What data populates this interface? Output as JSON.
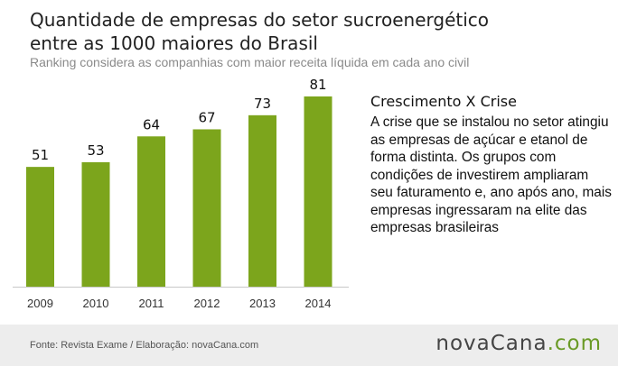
{
  "header": {
    "title_line1": "Quantidade de empresas do setor sucroenergético",
    "title_line2": "entre as 1000 maiores do Brasil",
    "subtitle": "Ranking considera as companhias com maior receita líquida em cada ano civil"
  },
  "sidebar": {
    "heading": "Crescimento X Crise",
    "body": "A crise que se instalou no setor atingiu as empresas de açúcar e etanol de forma distinta. Os grupos com condições de investirem ampliaram seu faturamento e, ano após ano, mais empresas ingressaram na elite das empresas brasileiras"
  },
  "footer": {
    "source": "Fonte: Revista Exame / Elaboração: novaCana.com",
    "logo_part1": "nova",
    "logo_part2": "Cana",
    "logo_part3": ".com"
  },
  "colors": {
    "bar": "#7ca51c",
    "axis": "#c8c8c8",
    "label": "#111111",
    "tick": "#333333"
  },
  "chart_data": {
    "type": "bar",
    "categories": [
      "2009",
      "2010",
      "2011",
      "2012",
      "2013",
      "2014"
    ],
    "values": [
      51,
      53,
      64,
      67,
      73,
      81
    ],
    "title": "Quantidade de empresas do setor sucroenergético entre as 1000 maiores do Brasil",
    "subtitle": "Ranking considera as companhias com maior receita líquida em cada ano civil",
    "ylim": [
      0,
      81
    ],
    "grid": false,
    "data_labels": true
  }
}
